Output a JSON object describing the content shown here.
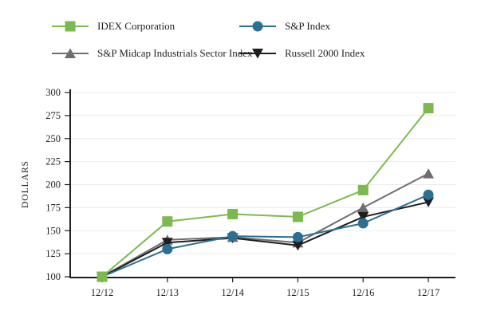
{
  "chart_data": {
    "type": "line",
    "title": "",
    "ylabel": "DOLLARS",
    "xlabel": "",
    "x": [
      "12/12",
      "12/13",
      "12/14",
      "12/15",
      "12/16",
      "12/17"
    ],
    "yticks": [
      100,
      125,
      150,
      175,
      200,
      225,
      250,
      275,
      300
    ],
    "ylim": [
      100,
      300
    ],
    "grid": true,
    "legend_position": "top",
    "axis_color": "#231f20",
    "grid_color": "#ebebeb",
    "series": [
      {
        "name": "IDEX Corporation",
        "marker": "square",
        "color": "#7cb94e",
        "values": [
          100,
          160,
          168,
          165,
          194,
          283
        ]
      },
      {
        "name": "S&P Index",
        "marker": "circle",
        "color": "#2b7093",
        "values": [
          100,
          130,
          144,
          143,
          158,
          189
        ]
      },
      {
        "name": "S&P Midcap Industrials Sector Index",
        "marker": "triangle-up",
        "color": "#6d6e71",
        "values": [
          100,
          140,
          143,
          137,
          175,
          212
        ]
      },
      {
        "name": "Russell 2000 Index",
        "marker": "triangle-down",
        "color": "#1e1e1e",
        "values": [
          100,
          137,
          142,
          134,
          165,
          181
        ]
      }
    ]
  }
}
